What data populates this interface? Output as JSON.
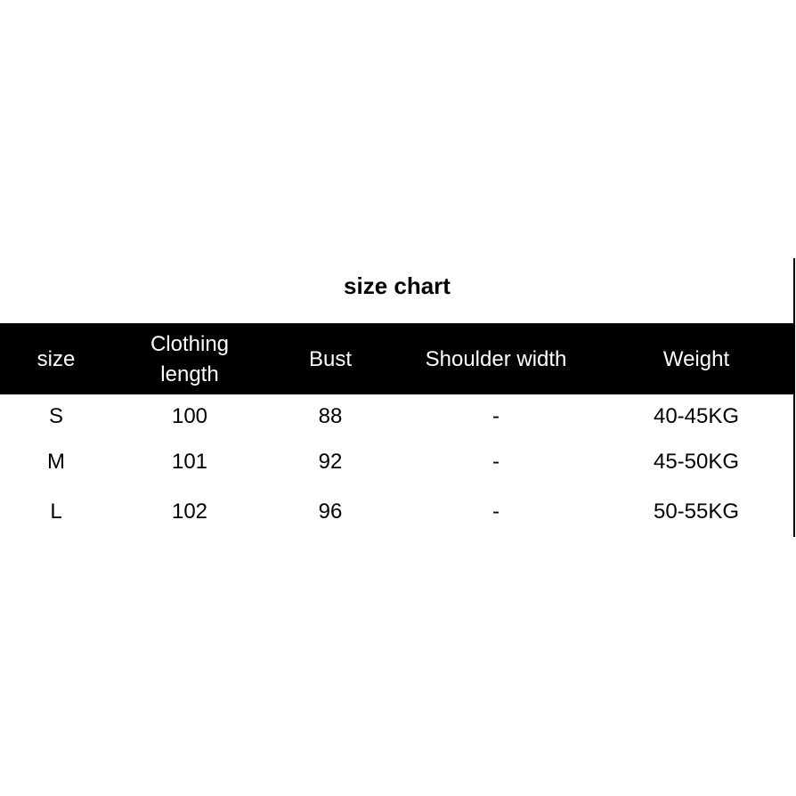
{
  "title": "size chart",
  "table": {
    "headers": [
      "size",
      "Clothing\nlength",
      "Bust",
      "Shoulder width",
      "Weight"
    ],
    "header_lines": {
      "clothing_1": "Clothing",
      "clothing_2": "length"
    },
    "rows": [
      [
        "S",
        "100",
        "88",
        "-",
        "40-45KG"
      ],
      [
        "M",
        "101",
        "92",
        "-",
        "45-50KG"
      ],
      [
        "L",
        "102",
        "96",
        "-",
        "50-55KG"
      ]
    ]
  },
  "colors": {
    "header_bg": "#000000",
    "header_text": "#ffffff"
  }
}
